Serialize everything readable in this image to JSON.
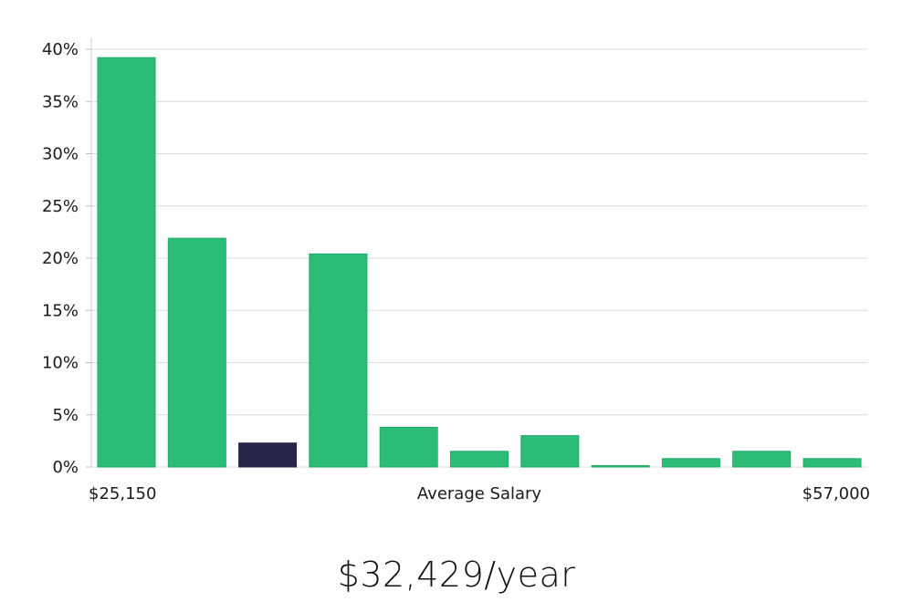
{
  "chart_data": {
    "type": "bar",
    "categories": [
      "",
      "",
      "",
      "",
      "",
      "",
      "",
      "",
      "",
      "",
      ""
    ],
    "values": [
      39.2,
      21.9,
      2.3,
      20.4,
      3.8,
      1.5,
      3.0,
      0.05,
      0.8,
      1.5,
      0.8
    ],
    "highlight_index": 2,
    "ylim": [
      0,
      40
    ],
    "yticks": [
      {
        "value": 0,
        "label": "0%"
      },
      {
        "value": 5,
        "label": "5%"
      },
      {
        "value": 10,
        "label": "10%"
      },
      {
        "value": 15,
        "label": "15%"
      },
      {
        "value": 20,
        "label": "20%"
      },
      {
        "value": 25,
        "label": "25%"
      },
      {
        "value": 30,
        "label": "30%"
      },
      {
        "value": 35,
        "label": "35%"
      },
      {
        "value": 40,
        "label": "40%"
      }
    ],
    "x_min_label": "$25,150",
    "xlabel": "Average Salary",
    "x_max_label": "$57,000",
    "grid": true,
    "colors": {
      "bar": "#2bbd77",
      "bar_edge": "#1faa66",
      "highlight": "#27254a"
    }
  },
  "summary": {
    "salary_text": "$32,429/year"
  }
}
